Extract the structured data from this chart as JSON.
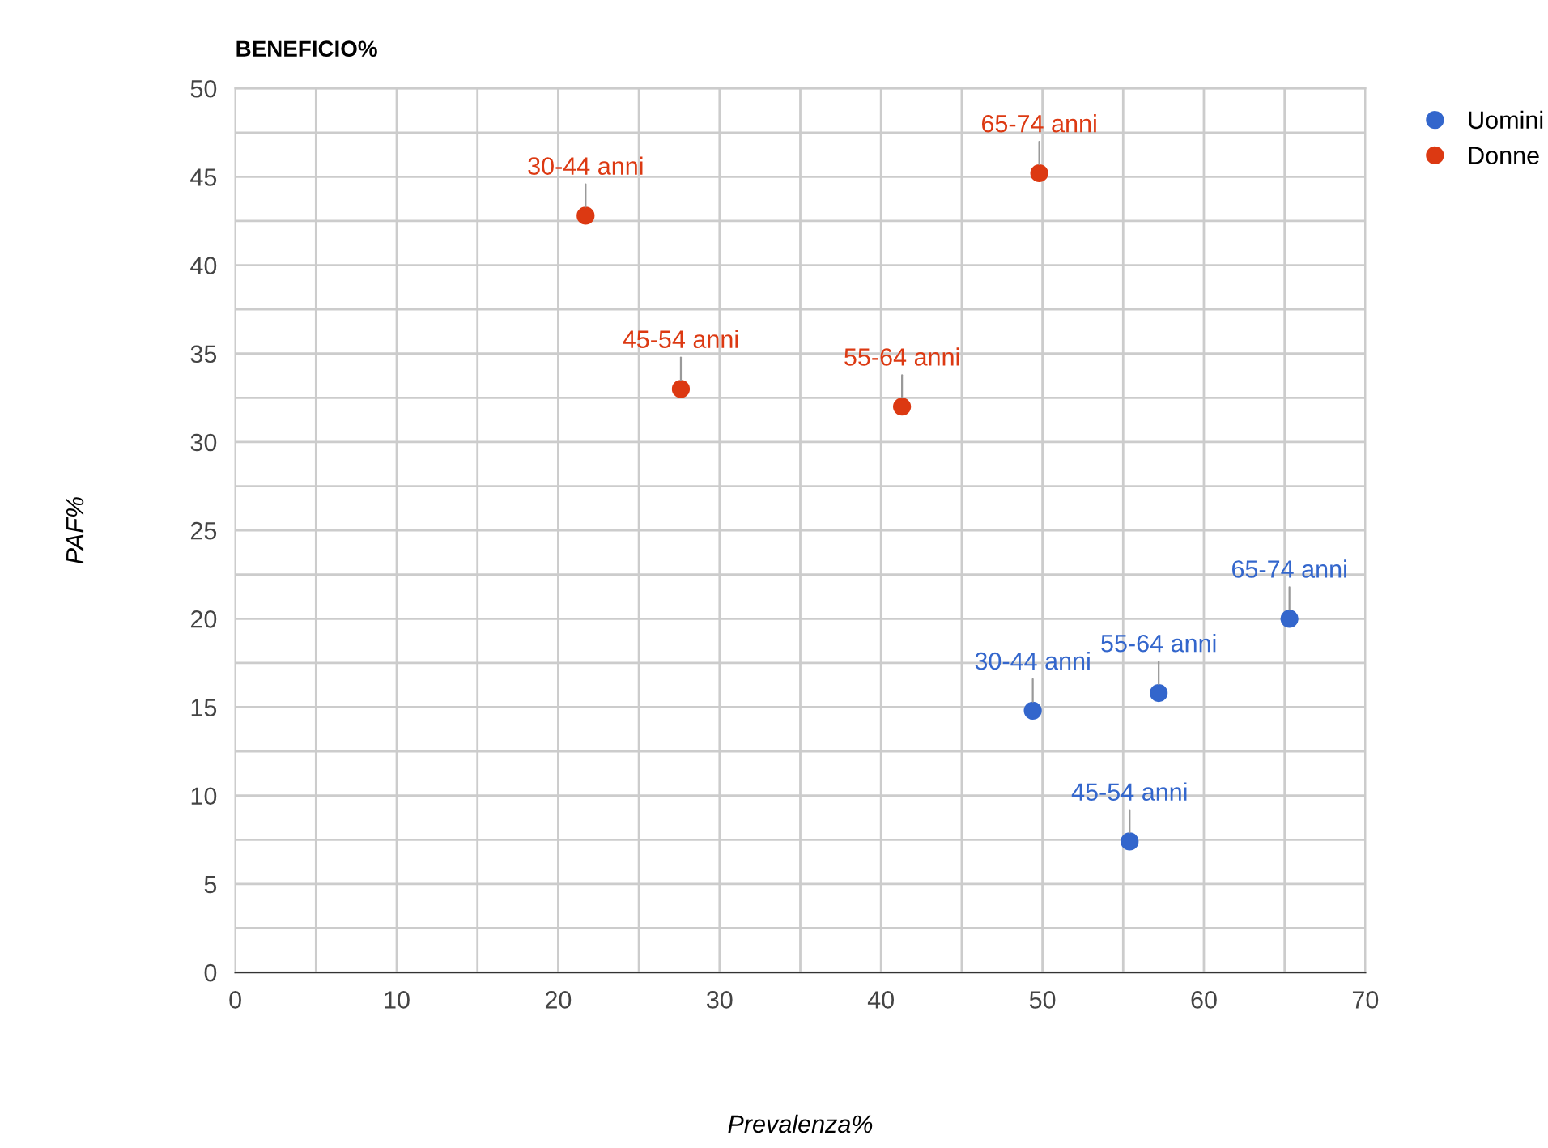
{
  "chart_data": {
    "type": "scatter",
    "title": "BENEFICIO%",
    "xlabel": "Prevalenza%",
    "ylabel": "PAF%",
    "series": [
      {
        "name": "Uomini",
        "color": "#3366cc",
        "x": [
          49.4,
          55.4,
          57.2,
          65.3
        ],
        "values": [
          14.8,
          7.4,
          15.8,
          20.0
        ]
      },
      {
        "name": "Donne",
        "color": "#dc3912",
        "x": [
          21.7,
          27.6,
          41.3,
          49.8
        ],
        "values": [
          42.8,
          33.0,
          32.0,
          45.2
        ]
      }
    ],
    "annotations": [
      {
        "text": "30-44 anni",
        "x": 49.4,
        "y": 14.8
      },
      {
        "text": "45-54 anni",
        "x": 55.4,
        "y": 7.4
      },
      {
        "text": "55-64 anni",
        "x": 57.2,
        "y": 15.8
      },
      {
        "text": "65-74 anni",
        "x": 65.3,
        "y": 20.0
      },
      {
        "text": "30-44 anni",
        "x": 21.7,
        "y": 42.8
      },
      {
        "text": "45-54 anni",
        "x": 27.6,
        "y": 33.0
      },
      {
        "text": "55-64 anni",
        "x": 41.3,
        "y": 32.0
      },
      {
        "text": "65-74 anni",
        "x": 49.8,
        "y": 45.2
      }
    ],
    "xlim": [
      0,
      70
    ],
    "ylim": [
      0,
      50
    ],
    "xticks": [
      0,
      {
        "value": 5,
        "label": null
      },
      10,
      {
        "value": 15,
        "label": null
      },
      20,
      {
        "value": 25,
        "label": null
      },
      30,
      {
        "value": 35,
        "label": null
      },
      40,
      {
        "value": 45,
        "label": null
      },
      50,
      {
        "value": 55,
        "label": null
      },
      60,
      {
        "value": 65,
        "label": null
      },
      70
    ],
    "yticks": [
      0,
      {
        "value": 2.5,
        "label": null
      },
      5,
      {
        "value": 7.5,
        "label": null
      },
      10,
      {
        "value": 12.5,
        "label": null
      },
      15,
      {
        "value": 17.5,
        "label": null
      },
      20,
      {
        "value": 22.5,
        "label": null
      },
      25,
      {
        "value": 27.5,
        "label": null
      },
      30,
      {
        "value": 32.5,
        "label": null
      },
      35,
      {
        "value": 37.5,
        "label": null
      },
      40,
      {
        "value": 42.5,
        "label": null
      },
      45,
      {
        "value": 47.5,
        "label": null
      },
      50
    ],
    "grid": true,
    "legend": "top right",
    "marker": "circle"
  }
}
